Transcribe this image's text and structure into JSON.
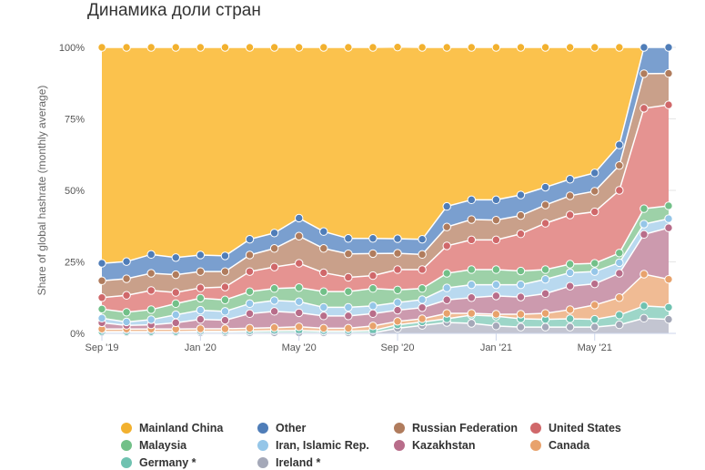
{
  "chart_data": {
    "type": "area",
    "stacked": true,
    "title": "Динамика доли стран",
    "ylabel": "Share of global hashrate (monthly average)",
    "xlabel": "",
    "ylim": [
      0,
      100
    ],
    "yticks": [
      "0%",
      "25%",
      "50%",
      "75%",
      "100%"
    ],
    "ytick_values": [
      0,
      25,
      50,
      75,
      100
    ],
    "x": [
      "2019-09",
      "2019-10",
      "2019-11",
      "2019-12",
      "2020-01",
      "2020-02",
      "2020-03",
      "2020-04",
      "2020-05",
      "2020-06",
      "2020-07",
      "2020-08",
      "2020-09",
      "2020-10",
      "2020-11",
      "2020-12",
      "2021-01",
      "2021-02",
      "2021-03",
      "2021-04",
      "2021-05",
      "2021-06",
      "2021-07",
      "2021-08"
    ],
    "xticks": [
      {
        "label": "Sep '19",
        "index": 0
      },
      {
        "label": "Jan '20",
        "index": 4
      },
      {
        "label": "May '20",
        "index": 8
      },
      {
        "label": "Sep '20",
        "index": 12
      },
      {
        "label": "Jan '21",
        "index": 16
      },
      {
        "label": "May '21",
        "index": 20
      }
    ],
    "grid": true,
    "legend_placement": "bottom",
    "series_stack_order_bottom_up": [
      "Ireland *",
      "Germany *",
      "Canada",
      "Kazakhstan",
      "Iran, Islamic Rep.",
      "Malaysia",
      "United States",
      "Russian Federation",
      "Other",
      "Mainland China"
    ],
    "series": [
      {
        "name": "Mainland China",
        "color": "#fbc24d",
        "marker": "#f2b12f",
        "values": [
          75.5,
          74.9,
          72.4,
          73.5,
          72.6,
          72.9,
          67.1,
          64.9,
          59.7,
          64.4,
          66.8,
          66.8,
          67.0,
          67.1,
          55.6,
          53.3,
          53.3,
          51.6,
          48.9,
          46.1,
          43.9,
          34.1,
          0,
          0
        ]
      },
      {
        "name": "Other",
        "color": "#7a9fcf",
        "marker": "#4f7db8",
        "values": [
          6.1,
          6.0,
          6.6,
          6.0,
          5.8,
          5.5,
          5.5,
          5.4,
          6.3,
          5.9,
          5.4,
          5.3,
          5.1,
          5.3,
          7.2,
          6.9,
          7.1,
          7.2,
          6.2,
          5.8,
          6.4,
          7.2,
          9.2,
          9.1
        ]
      },
      {
        "name": "Russian Federation",
        "color": "#c9a08a",
        "marker": "#b07c5d",
        "values": [
          5.9,
          5.8,
          6.0,
          6.2,
          5.7,
          5.4,
          5.8,
          6.5,
          9.5,
          8.5,
          8.2,
          7.7,
          5.7,
          5.3,
          6.6,
          7.1,
          6.9,
          6.4,
          6.4,
          6.7,
          7.2,
          8.7,
          12.1,
          11.0
        ]
      },
      {
        "name": "United States",
        "color": "#e59391",
        "marker": "#d0686a",
        "values": [
          4.0,
          5.9,
          6.7,
          3.9,
          3.6,
          4.5,
          7.0,
          7.5,
          8.5,
          6.6,
          5.0,
          4.5,
          7.1,
          6.6,
          9.6,
          10.4,
          10.4,
          13.0,
          16.2,
          17.2,
          18.0,
          21.9,
          35.1,
          35.3
        ]
      },
      {
        "name": "Malaysia",
        "color": "#9dd1a8",
        "marker": "#72c088",
        "values": [
          3.2,
          3.4,
          3.5,
          3.9,
          4.2,
          4.0,
          4.2,
          4.2,
          4.9,
          5.5,
          5.5,
          6.1,
          4.4,
          3.9,
          5.1,
          5.3,
          5.3,
          4.8,
          3.4,
          3.0,
          2.9,
          3.4,
          5.4,
          4.5
        ]
      },
      {
        "name": "Iran, Islamic Rep.",
        "color": "#b9d9ef",
        "marker": "#95c6e8",
        "values": [
          1.6,
          1.2,
          1.8,
          2.8,
          3.2,
          3.1,
          3.5,
          3.8,
          3.9,
          3.0,
          3.0,
          2.7,
          2.7,
          2.8,
          4.2,
          4.5,
          3.9,
          4.3,
          5.0,
          4.7,
          4.3,
          3.7,
          3.6,
          3.2
        ]
      },
      {
        "name": "Kazakhstan",
        "color": "#cc9aae",
        "marker": "#b86d8a",
        "values": [
          2.2,
          1.3,
          1.5,
          2.2,
          3.3,
          3.0,
          5.1,
          5.7,
          4.9,
          4.3,
          4.3,
          4.3,
          3.9,
          3.9,
          4.7,
          5.5,
          6.4,
          6.0,
          6.9,
          8.2,
          7.4,
          8.5,
          13.9,
          18.0
        ]
      },
      {
        "name": "Canada",
        "color": "#f0bb94",
        "marker": "#e8a26c",
        "values": [
          0.9,
          0.9,
          0.9,
          0.9,
          0.9,
          0.9,
          1.0,
          1.1,
          1.3,
          1.0,
          1.0,
          1.6,
          1.2,
          1.1,
          1.9,
          0.6,
          0.7,
          1.6,
          2.1,
          3.2,
          5.0,
          6.1,
          11.1,
          9.8
        ]
      },
      {
        "name": "Germany *",
        "color": "#9dd6c8",
        "marker": "#6fc2b0",
        "values": [
          0.4,
          0.4,
          0.4,
          0.4,
          0.5,
          0.5,
          0.6,
          0.7,
          0.8,
          0.6,
          0.6,
          0.8,
          1.2,
          1.2,
          1.3,
          2.9,
          3.4,
          2.9,
          2.7,
          2.9,
          2.7,
          3.4,
          4.3,
          4.2
        ]
      },
      {
        "name": "Ireland *",
        "color": "#c3c5d1",
        "marker": "#a4a8b8",
        "values": [
          0.2,
          0.2,
          0.2,
          0.2,
          0.2,
          0.2,
          0.2,
          0.2,
          0.2,
          0.2,
          0.2,
          0.2,
          1.8,
          2.8,
          3.8,
          3.5,
          2.6,
          2.2,
          2.2,
          2.2,
          2.2,
          3.0,
          5.3,
          4.9
        ]
      }
    ],
    "legend": [
      "Mainland China",
      "Other",
      "Russian Federation",
      "United States",
      "Malaysia",
      "Iran, Islamic Rep.",
      "Kazakhstan",
      "Canada",
      "Germany *",
      "Ireland *"
    ]
  }
}
